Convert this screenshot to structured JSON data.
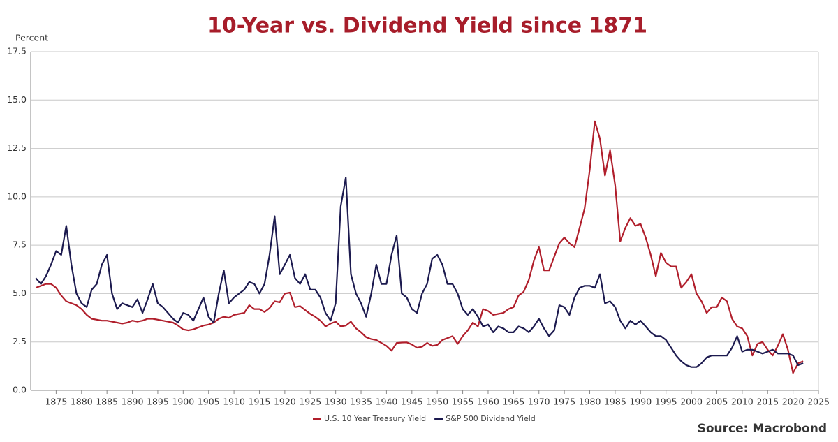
{
  "chart_data": {
    "type": "line",
    "title": "10-Year vs. Dividend Yield since 1871",
    "y_label": "Percent",
    "source": "Source: Macrobond",
    "xlim": [
      1870,
      2025
    ],
    "xticks": [
      1875,
      1880,
      1885,
      1890,
      1895,
      1900,
      1905,
      1910,
      1915,
      1920,
      1925,
      1930,
      1935,
      1940,
      1945,
      1950,
      1955,
      1960,
      1965,
      1970,
      1975,
      1980,
      1985,
      1990,
      1995,
      2000,
      2005,
      2010,
      2015,
      2020,
      2025
    ],
    "ylim": [
      0,
      17.5
    ],
    "yticks": [
      {
        "value": 0,
        "label": "0.0"
      },
      2.5,
      {
        "value": 5,
        "label": "5.0"
      },
      7.5,
      {
        "value": 10,
        "label": "10.0"
      },
      12.5,
      {
        "value": 15,
        "label": "15.0"
      },
      17.5
    ],
    "grid": true,
    "x": [
      1871,
      1872,
      1873,
      1874,
      1875,
      1876,
      1877,
      1878,
      1879,
      1880,
      1881,
      1882,
      1883,
      1884,
      1885,
      1886,
      1887,
      1888,
      1889,
      1890,
      1891,
      1892,
      1893,
      1894,
      1895,
      1896,
      1897,
      1898,
      1899,
      1900,
      1901,
      1902,
      1903,
      1904,
      1905,
      1906,
      1907,
      1908,
      1909,
      1910,
      1911,
      1912,
      1913,
      1914,
      1915,
      1916,
      1917,
      1918,
      1919,
      1920,
      1921,
      1922,
      1923,
      1924,
      1925,
      1926,
      1927,
      1928,
      1929,
      1930,
      1931,
      1932,
      1933,
      1934,
      1935,
      1936,
      1937,
      1938,
      1939,
      1940,
      1941,
      1942,
      1943,
      1944,
      1945,
      1946,
      1947,
      1948,
      1949,
      1950,
      1951,
      1952,
      1953,
      1954,
      1955,
      1956,
      1957,
      1958,
      1959,
      1960,
      1961,
      1962,
      1963,
      1964,
      1965,
      1966,
      1967,
      1968,
      1969,
      1970,
      1971,
      1972,
      1973,
      1974,
      1975,
      1976,
      1977,
      1978,
      1979,
      1980,
      1981,
      1982,
      1983,
      1984,
      1985,
      1986,
      1987,
      1988,
      1989,
      1990,
      1991,
      1992,
      1993,
      1994,
      1995,
      1996,
      1997,
      1998,
      1999,
      2000,
      2001,
      2002,
      2003,
      2004,
      2005,
      2006,
      2007,
      2008,
      2009,
      2010,
      2011,
      2012,
      2013,
      2014,
      2015,
      2016,
      2017,
      2018,
      2019,
      2020,
      2021,
      2022
    ],
    "series": [
      {
        "name": "U.S. 10 Year Treasury Yield",
        "color": "#b01e2b",
        "values": [
          5.3,
          5.4,
          5.5,
          5.5,
          5.3,
          4.9,
          4.6,
          4.5,
          4.4,
          4.2,
          3.9,
          3.7,
          3.65,
          3.6,
          3.6,
          3.55,
          3.5,
          3.45,
          3.5,
          3.6,
          3.55,
          3.6,
          3.7,
          3.7,
          3.65,
          3.6,
          3.55,
          3.5,
          3.35,
          3.15,
          3.1,
          3.15,
          3.25,
          3.35,
          3.4,
          3.5,
          3.7,
          3.8,
          3.75,
          3.9,
          3.95,
          4.0,
          4.4,
          4.2,
          4.2,
          4.05,
          4.25,
          4.6,
          4.55,
          5.0,
          5.05,
          4.3,
          4.35,
          4.15,
          3.95,
          3.8,
          3.6,
          3.3,
          3.45,
          3.55,
          3.3,
          3.35,
          3.55,
          3.2,
          3.0,
          2.75,
          2.65,
          2.6,
          2.45,
          2.3,
          2.05,
          2.45,
          2.47,
          2.48,
          2.37,
          2.2,
          2.25,
          2.45,
          2.3,
          2.35,
          2.6,
          2.7,
          2.8,
          2.4,
          2.8,
          3.1,
          3.5,
          3.3,
          4.2,
          4.1,
          3.9,
          3.95,
          4.0,
          4.2,
          4.3,
          4.9,
          5.1,
          5.7,
          6.7,
          7.4,
          6.2,
          6.2,
          6.9,
          7.6,
          7.9,
          7.6,
          7.4,
          8.4,
          9.4,
          11.4,
          13.9,
          13.0,
          11.1,
          12.4,
          10.6,
          7.7,
          8.4,
          8.9,
          8.5,
          8.6,
          7.9,
          7.0,
          5.9,
          7.1,
          6.6,
          6.4,
          6.4,
          5.3,
          5.6,
          6.0,
          5.0,
          4.6,
          4.0,
          4.3,
          4.3,
          4.8,
          4.6,
          3.7,
          3.3,
          3.2,
          2.8,
          1.8,
          2.4,
          2.5,
          2.1,
          1.8,
          2.3,
          2.9,
          2.1,
          0.9,
          1.4,
          1.5
        ]
      },
      {
        "name": "S&P 500 Dividend Yield",
        "color": "#1c1a4f",
        "values": [
          5.8,
          5.5,
          5.9,
          6.5,
          7.2,
          7.0,
          8.5,
          6.5,
          5.0,
          4.5,
          4.3,
          5.2,
          5.5,
          6.5,
          7.0,
          5.0,
          4.2,
          4.5,
          4.4,
          4.3,
          4.7,
          4.0,
          4.7,
          5.5,
          4.5,
          4.3,
          4.0,
          3.7,
          3.5,
          4.0,
          3.9,
          3.6,
          4.2,
          4.8,
          3.8,
          3.5,
          5.0,
          6.2,
          4.5,
          4.8,
          5.0,
          5.2,
          5.6,
          5.5,
          5.0,
          5.5,
          7.0,
          9.0,
          6.0,
          6.5,
          7.0,
          5.8,
          5.5,
          6.0,
          5.2,
          5.2,
          4.8,
          4.0,
          3.6,
          4.5,
          9.5,
          11.0,
          6.0,
          5.0,
          4.5,
          3.8,
          5.0,
          6.5,
          5.5,
          5.5,
          7.0,
          8.0,
          5.0,
          4.8,
          4.2,
          4.0,
          5.0,
          5.5,
          6.8,
          7.0,
          6.5,
          5.5,
          5.5,
          5.0,
          4.2,
          3.9,
          4.2,
          3.8,
          3.3,
          3.4,
          3.0,
          3.3,
          3.2,
          3.0,
          3.0,
          3.3,
          3.2,
          3.0,
          3.3,
          3.7,
          3.2,
          2.8,
          3.1,
          4.4,
          4.3,
          3.9,
          4.8,
          5.3,
          5.4,
          5.4,
          5.3,
          6.0,
          4.5,
          4.6,
          4.3,
          3.6,
          3.2,
          3.6,
          3.4,
          3.6,
          3.3,
          3.0,
          2.8,
          2.8,
          2.6,
          2.2,
          1.8,
          1.5,
          1.3,
          1.2,
          1.2,
          1.4,
          1.7,
          1.8,
          1.8,
          1.8,
          1.8,
          2.2,
          2.8,
          2.0,
          2.1,
          2.1,
          2.0,
          1.9,
          2.0,
          2.1,
          1.9,
          1.9,
          1.9,
          1.8,
          1.3,
          1.4
        ]
      }
    ]
  }
}
